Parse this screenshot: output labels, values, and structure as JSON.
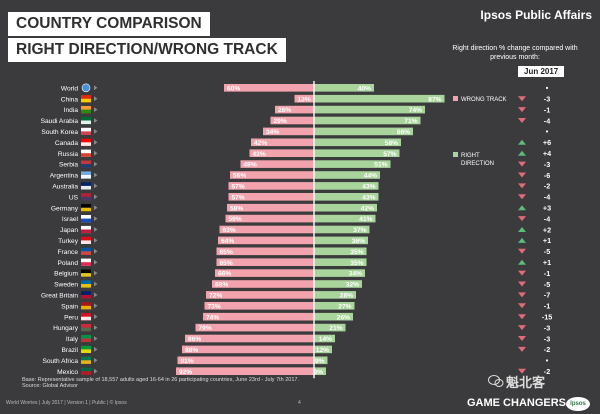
{
  "header": {
    "title_line1": "COUNTRY COMPARISON",
    "title_line2": "RIGHT DIRECTION/WRONG TRACK",
    "brand": "Ipsos Public Affairs",
    "change_note": "Right direction % change compared with previous month:",
    "change_period": "Jun 2017"
  },
  "chart_data": {
    "type": "bar",
    "title": "Right Direction / Wrong Track",
    "legend": [
      {
        "name": "WRONG TRACK",
        "color": "#f3a3ad"
      },
      {
        "name": "RIGHT DIRECTION",
        "color": "#a9d59c"
      }
    ],
    "categories": [
      "World",
      "China",
      "India",
      "Saudi Arabia",
      "South Korea",
      "Canada",
      "Russia",
      "Serbia",
      "Argentina",
      "Australia",
      "US",
      "Germany",
      "Israel",
      "Japan",
      "Turkey",
      "France",
      "Poland",
      "Belgium",
      "Sweden",
      "Great Britain",
      "Spain",
      "Peru",
      "Hungary",
      "Italy",
      "Brazil",
      "South Africa",
      "Mexico"
    ],
    "series": [
      {
        "name": "WRONG TRACK",
        "unit": "%",
        "values": [
          60,
          13,
          26,
          29,
          34,
          42,
          43,
          49,
          56,
          57,
          57,
          58,
          59,
          63,
          64,
          65,
          65,
          66,
          68,
          72,
          73,
          74,
          79,
          86,
          88,
          91,
          92
        ]
      },
      {
        "name": "RIGHT DIRECTION",
        "unit": "%",
        "values": [
          40,
          87,
          74,
          71,
          66,
          58,
          57,
          51,
          44,
          43,
          43,
          42,
          41,
          37,
          36,
          35,
          35,
          34,
          32,
          28,
          27,
          26,
          21,
          14,
          12,
          9,
          8
        ]
      }
    ],
    "change": [
      "•",
      "-3",
      "-1",
      "-4",
      "•",
      "+6",
      "+4",
      "-3",
      "-6",
      "-2",
      "-4",
      "+3",
      "-4",
      "+2",
      "+1",
      "-5",
      "+1",
      "-1",
      "-5",
      "-7",
      "-1",
      "-15",
      "-3",
      "-3",
      "-2",
      "•",
      "-2"
    ],
    "ylim": [
      0,
      100
    ]
  },
  "colors": {
    "wrong": "#f3a3ad",
    "right": "#a9d59c",
    "divider": "#ffffff",
    "up": "#5bbd7a",
    "down": "#e06b7a"
  },
  "footer": {
    "base_note": "Base: Representative sample of 18,557 adults aged 16-64 in 26 participating countries, June 23rd - July 7th 2017.",
    "source": "Source: Global Advisor",
    "meta": "World Worries | July 2017 | Version 1 | Public | © Ipsos",
    "page": "4",
    "tagline": "GAME CHANGERS",
    "logo": "Ipsos",
    "watermark": "魁北客"
  }
}
